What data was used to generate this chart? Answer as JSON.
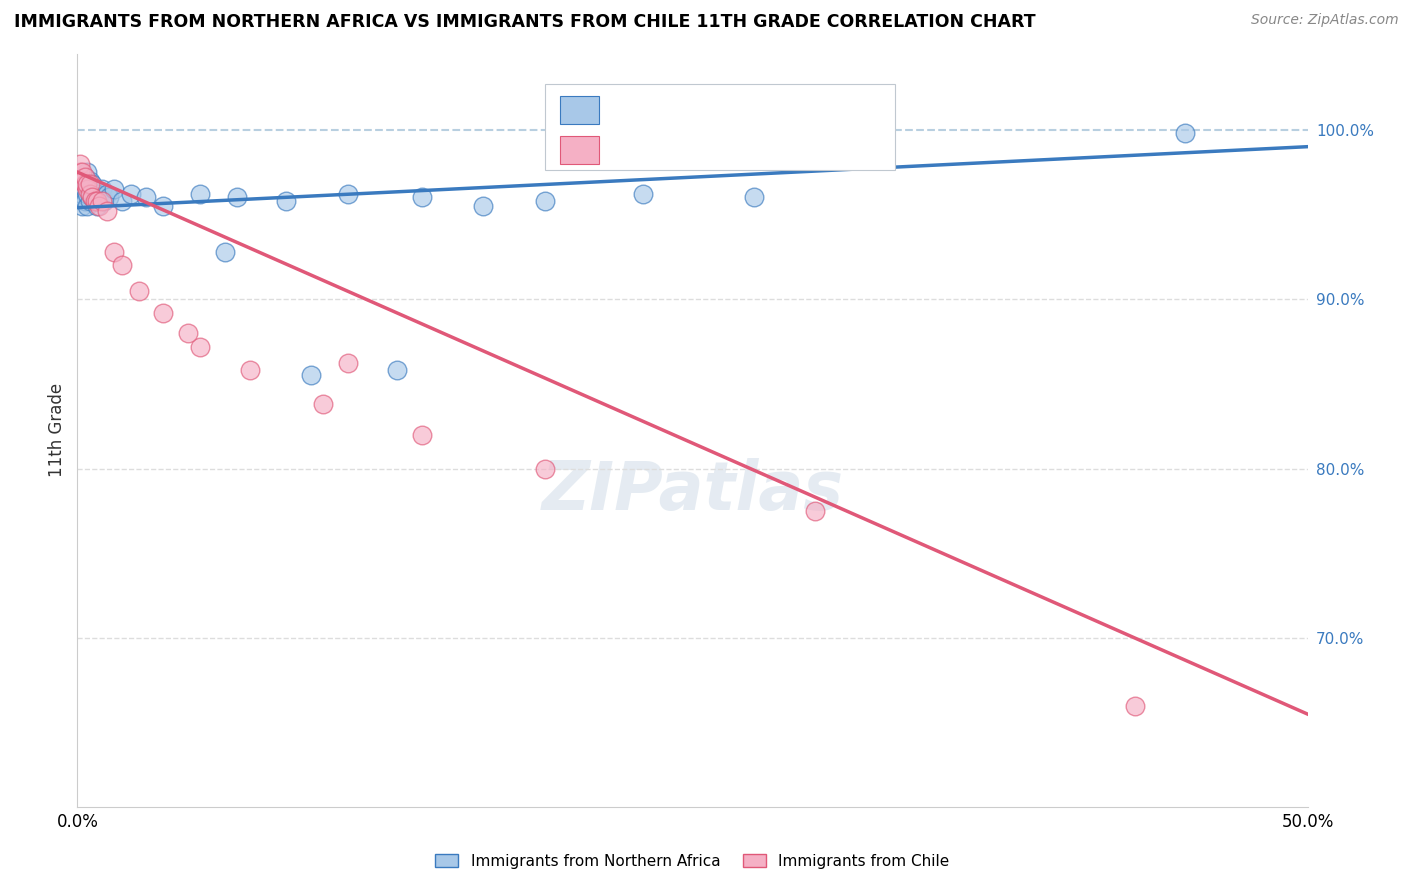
{
  "title": "IMMIGRANTS FROM NORTHERN AFRICA VS IMMIGRANTS FROM CHILE 11TH GRADE CORRELATION CHART",
  "source": "Source: ZipAtlas.com",
  "ylabel": "11th Grade",
  "xlim": [
    0.0,
    0.5
  ],
  "ylim": [
    0.6,
    1.045
  ],
  "blue_color": "#a8c8e8",
  "pink_color": "#f5b0c5",
  "trend_blue_color": "#3a7abf",
  "trend_pink_color": "#e05878",
  "grid_color": "#dddddd",
  "dashed_line_color": "#b8cfe0",
  "legend_label_blue": "Immigrants from Northern Africa",
  "legend_label_pink": "Immigrants from Chile",
  "blue_x": [
    0.001,
    0.001,
    0.002,
    0.002,
    0.002,
    0.003,
    0.003,
    0.003,
    0.004,
    0.004,
    0.004,
    0.004,
    0.005,
    0.005,
    0.005,
    0.006,
    0.006,
    0.007,
    0.007,
    0.008,
    0.008,
    0.009,
    0.01,
    0.011,
    0.012,
    0.013,
    0.015,
    0.018,
    0.022,
    0.028,
    0.035,
    0.05,
    0.065,
    0.085,
    0.11,
    0.14,
    0.165,
    0.19,
    0.23,
    0.275,
    0.095,
    0.13,
    0.45,
    0.06
  ],
  "blue_y": [
    0.96,
    0.968,
    0.955,
    0.962,
    0.97,
    0.958,
    0.965,
    0.972,
    0.955,
    0.962,
    0.968,
    0.975,
    0.958,
    0.965,
    0.97,
    0.96,
    0.968,
    0.958,
    0.965,
    0.955,
    0.962,
    0.96,
    0.965,
    0.958,
    0.962,
    0.96,
    0.965,
    0.958,
    0.962,
    0.96,
    0.955,
    0.962,
    0.96,
    0.958,
    0.962,
    0.96,
    0.955,
    0.958,
    0.962,
    0.96,
    0.855,
    0.858,
    0.998,
    0.928
  ],
  "pink_x": [
    0.001,
    0.001,
    0.002,
    0.002,
    0.003,
    0.003,
    0.004,
    0.004,
    0.005,
    0.005,
    0.006,
    0.007,
    0.008,
    0.009,
    0.01,
    0.012,
    0.015,
    0.018,
    0.025,
    0.035,
    0.05,
    0.07,
    0.1,
    0.14,
    0.19,
    0.11,
    0.43,
    0.045,
    0.3
  ],
  "pink_y": [
    0.975,
    0.98,
    0.97,
    0.975,
    0.968,
    0.972,
    0.965,
    0.968,
    0.962,
    0.968,
    0.96,
    0.958,
    0.958,
    0.955,
    0.958,
    0.952,
    0.928,
    0.92,
    0.905,
    0.892,
    0.872,
    0.858,
    0.838,
    0.82,
    0.8,
    0.862,
    0.66,
    0.88,
    0.775
  ]
}
